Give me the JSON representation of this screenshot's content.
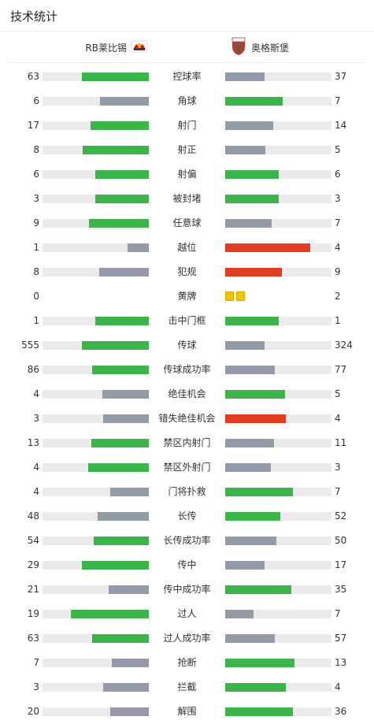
{
  "header": {
    "title": "技术统计"
  },
  "teams": {
    "home": {
      "name": "RB莱比锡",
      "crest_icon": "rb-leipzig-crest-icon"
    },
    "away": {
      "name": "奥格斯堡",
      "crest_icon": "fc-augsburg-crest-icon"
    }
  },
  "colors": {
    "leader": "#3bb54a",
    "trailer": "#949aa8",
    "foul_card": "#e23d20",
    "yellow_card": "#f2c300",
    "track": "#ebebeb"
  },
  "stats": [
    {
      "label": "控球率",
      "home": "63",
      "away": "37",
      "home_ratio": 0.63,
      "away_ratio": 0.37,
      "home_color": "green",
      "away_color": "gray"
    },
    {
      "label": "角球",
      "home": "6",
      "away": "7",
      "home_ratio": 0.46,
      "away_ratio": 0.54,
      "home_color": "gray",
      "away_color": "green"
    },
    {
      "label": "射门",
      "home": "17",
      "away": "14",
      "home_ratio": 0.55,
      "away_ratio": 0.45,
      "home_color": "green",
      "away_color": "gray"
    },
    {
      "label": "射正",
      "home": "8",
      "away": "5",
      "home_ratio": 0.62,
      "away_ratio": 0.38,
      "home_color": "green",
      "away_color": "gray"
    },
    {
      "label": "射偏",
      "home": "6",
      "away": "6",
      "home_ratio": 0.5,
      "away_ratio": 0.5,
      "home_color": "green",
      "away_color": "green"
    },
    {
      "label": "被封堵",
      "home": "3",
      "away": "3",
      "home_ratio": 0.5,
      "away_ratio": 0.5,
      "home_color": "green",
      "away_color": "green"
    },
    {
      "label": "任意球",
      "home": "9",
      "away": "7",
      "home_ratio": 0.56,
      "away_ratio": 0.44,
      "home_color": "green",
      "away_color": "gray"
    },
    {
      "label": "越位",
      "home": "1",
      "away": "4",
      "home_ratio": 0.2,
      "away_ratio": 0.8,
      "home_color": "gray",
      "away_color": "red"
    },
    {
      "label": "犯规",
      "home": "8",
      "away": "9",
      "home_ratio": 0.47,
      "away_ratio": 0.53,
      "home_color": "gray",
      "away_color": "red"
    },
    {
      "label": "黄牌",
      "home": "0",
      "away": "2",
      "home_cards": 0,
      "away_cards": 2
    },
    {
      "label": "击中门框",
      "home": "1",
      "away": "1",
      "home_ratio": 0.5,
      "away_ratio": 0.5,
      "home_color": "green",
      "away_color": "green"
    },
    {
      "label": "传球",
      "home": "555",
      "away": "324",
      "home_ratio": 0.63,
      "away_ratio": 0.37,
      "home_color": "green",
      "away_color": "gray"
    },
    {
      "label": "传球成功率",
      "home": "86",
      "away": "77",
      "home_ratio": 0.53,
      "away_ratio": 0.47,
      "home_color": "green",
      "away_color": "gray"
    },
    {
      "label": "绝佳机会",
      "home": "4",
      "away": "5",
      "home_ratio": 0.44,
      "away_ratio": 0.56,
      "home_color": "gray",
      "away_color": "green"
    },
    {
      "label": "错失绝佳机会",
      "home": "3",
      "away": "4",
      "home_ratio": 0.43,
      "away_ratio": 0.57,
      "home_color": "gray",
      "away_color": "red"
    },
    {
      "label": "禁区内射门",
      "home": "13",
      "away": "11",
      "home_ratio": 0.54,
      "away_ratio": 0.46,
      "home_color": "green",
      "away_color": "gray"
    },
    {
      "label": "禁区外射门",
      "home": "4",
      "away": "3",
      "home_ratio": 0.57,
      "away_ratio": 0.43,
      "home_color": "green",
      "away_color": "gray"
    },
    {
      "label": "门将扑救",
      "home": "4",
      "away": "7",
      "home_ratio": 0.36,
      "away_ratio": 0.64,
      "home_color": "gray",
      "away_color": "green"
    },
    {
      "label": "长传",
      "home": "48",
      "away": "52",
      "home_ratio": 0.48,
      "away_ratio": 0.52,
      "home_color": "gray",
      "away_color": "green"
    },
    {
      "label": "长传成功率",
      "home": "54",
      "away": "50",
      "home_ratio": 0.52,
      "away_ratio": 0.48,
      "home_color": "green",
      "away_color": "gray"
    },
    {
      "label": "传中",
      "home": "29",
      "away": "17",
      "home_ratio": 0.63,
      "away_ratio": 0.37,
      "home_color": "green",
      "away_color": "gray"
    },
    {
      "label": "传中成功率",
      "home": "21",
      "away": "35",
      "home_ratio": 0.38,
      "away_ratio": 0.62,
      "home_color": "gray",
      "away_color": "green"
    },
    {
      "label": "过人",
      "home": "19",
      "away": "7",
      "home_ratio": 0.73,
      "away_ratio": 0.27,
      "home_color": "green",
      "away_color": "gray"
    },
    {
      "label": "过人成功率",
      "home": "63",
      "away": "57",
      "home_ratio": 0.53,
      "away_ratio": 0.47,
      "home_color": "green",
      "away_color": "gray"
    },
    {
      "label": "抢断",
      "home": "7",
      "away": "13",
      "home_ratio": 0.35,
      "away_ratio": 0.65,
      "home_color": "gray",
      "away_color": "green"
    },
    {
      "label": "拦截",
      "home": "3",
      "away": "4",
      "home_ratio": 0.43,
      "away_ratio": 0.57,
      "home_color": "gray",
      "away_color": "green"
    },
    {
      "label": "解围",
      "home": "20",
      "away": "36",
      "home_ratio": 0.36,
      "away_ratio": 0.64,
      "home_color": "gray",
      "away_color": "green"
    }
  ]
}
